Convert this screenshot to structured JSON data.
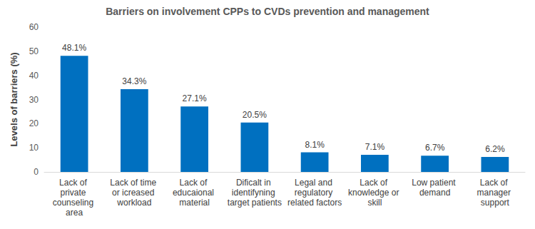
{
  "chart_data": {
    "type": "bar",
    "title": "Barriers on involvement CPPs to CVDs prevention and management",
    "y_label": "Levels of barriers (%)",
    "categories": [
      "Lack of private counseling area",
      "Lack of time or icreased workload",
      "Lack of educaional material",
      "Dificalt in identifyning target patients",
      "Legal and regulatory related factors",
      "Lack of knowledge or skill",
      "Low patient demand",
      "Lack of manager support"
    ],
    "values": [
      48.1,
      34.3,
      27.1,
      20.5,
      8.1,
      7.1,
      6.7,
      6.2
    ],
    "value_labels": [
      "48.1%",
      "34.3%",
      "27.1%",
      "20.5%",
      "8.1%",
      "7.1%",
      "6.7%",
      "6.2%"
    ],
    "color": "#0070c0",
    "ylim": [
      0,
      60
    ],
    "yticks": [
      0,
      10,
      20,
      30,
      40,
      50,
      60
    ],
    "grid": false,
    "data_labels": true
  }
}
